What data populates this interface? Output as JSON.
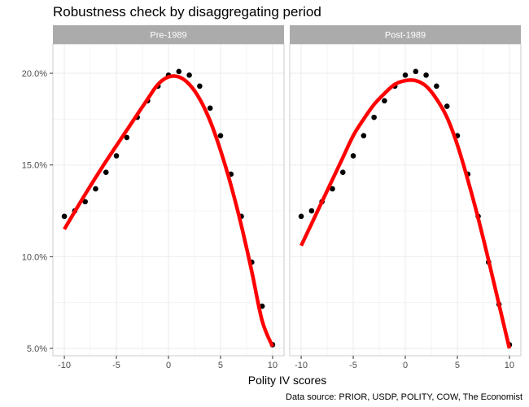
{
  "chart_data": {
    "type": "scatter",
    "title": "Robustness check by disaggregating period",
    "xlabel": "Polity IV scores",
    "ylabel": "",
    "caption": "Data source: PRIOR, USDP, POLITY, COW, The Economist",
    "xlim": [
      -11.1,
      11.1
    ],
    "ylim": [
      4.6,
      21.6
    ],
    "x_ticks": [
      -10,
      -5,
      0,
      5,
      10
    ],
    "x_tick_labels": [
      "-10",
      "-5",
      "0",
      "5",
      "10"
    ],
    "y_ticks": [
      5,
      10,
      15,
      20
    ],
    "y_tick_labels": [
      "5.0%",
      "10.0%",
      "15.0%",
      "20.0%"
    ],
    "grid": true,
    "colors": {
      "points": "#000000",
      "fit_line": "#ff0000",
      "strip_bg": "#ababab",
      "grid": "#ebebeb",
      "panel_border": "#cccccc"
    },
    "panels": [
      {
        "name": "Pre-1989",
        "points": {
          "x": [
            -10,
            -9,
            -8,
            -7,
            -6,
            -5,
            -4,
            -3,
            -2,
            -1,
            0,
            1,
            2,
            3,
            4,
            5,
            6,
            7,
            8,
            9,
            10
          ],
          "y": [
            12.2,
            12.5,
            13.0,
            13.7,
            14.6,
            15.5,
            16.5,
            17.6,
            18.5,
            19.3,
            19.9,
            20.1,
            19.9,
            19.3,
            18.1,
            16.6,
            14.5,
            12.2,
            9.7,
            7.3,
            5.2
          ]
        },
        "fit": {
          "x": [
            -10,
            -8,
            -6,
            -4,
            -2,
            -1,
            0,
            1,
            2,
            3,
            4,
            5,
            6,
            7,
            8,
            9,
            10
          ],
          "y": [
            11.5,
            13.4,
            15.2,
            16.9,
            18.6,
            19.4,
            19.8,
            19.8,
            19.4,
            18.6,
            17.4,
            15.8,
            13.9,
            11.7,
            9.2,
            6.5,
            5.1
          ]
        }
      },
      {
        "name": "Post-1989",
        "points": {
          "x": [
            -10,
            -9,
            -8,
            -7,
            -6,
            -5,
            -4,
            -3,
            -2,
            -1,
            0,
            1,
            2,
            3,
            4,
            5,
            6,
            7,
            8,
            9,
            10
          ],
          "y": [
            12.2,
            12.5,
            13.0,
            13.7,
            14.6,
            15.5,
            16.6,
            17.6,
            18.5,
            19.3,
            19.9,
            20.1,
            19.9,
            19.3,
            18.2,
            16.6,
            14.5,
            12.2,
            9.7,
            7.4,
            5.2
          ]
        },
        "fit": {
          "x": [
            -10,
            -9,
            -8,
            -7,
            -6,
            -5,
            -4,
            -3,
            -2,
            -1,
            0,
            1,
            2,
            3,
            4,
            5,
            6,
            7,
            8,
            9,
            10
          ],
          "y": [
            10.6,
            11.8,
            13.0,
            14.2,
            15.4,
            16.6,
            17.5,
            18.3,
            18.9,
            19.4,
            19.6,
            19.6,
            19.3,
            18.6,
            17.6,
            16.1,
            14.2,
            12.1,
            9.8,
            7.4,
            5.0
          ]
        }
      }
    ]
  }
}
